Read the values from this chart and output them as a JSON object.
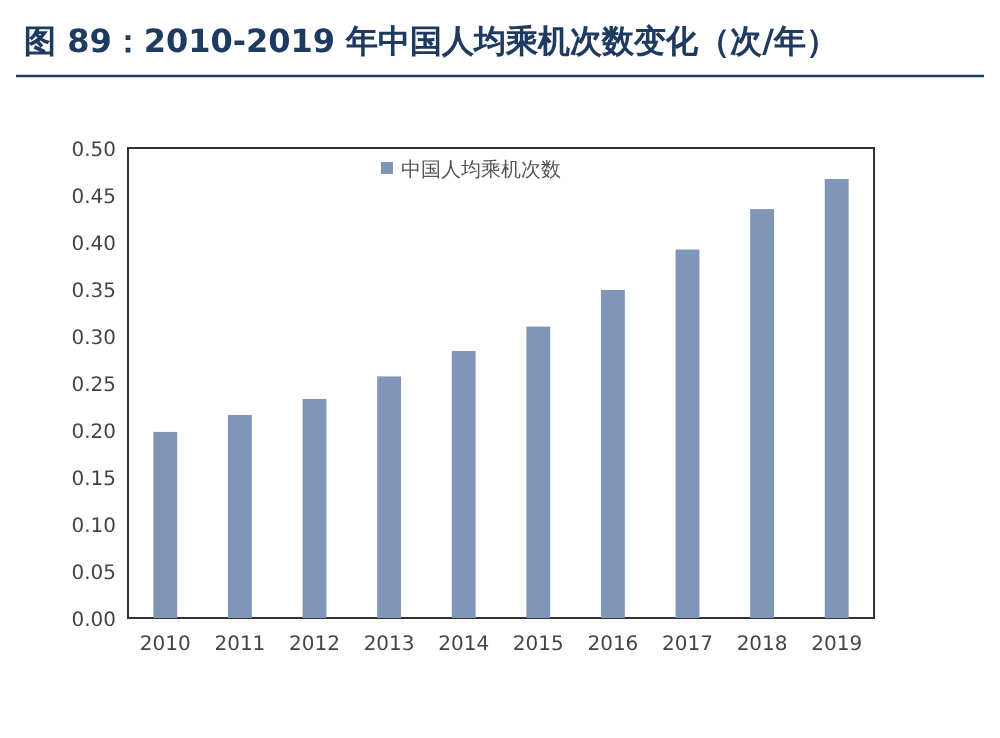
{
  "chart_data": {
    "type": "bar",
    "title": "图 89：2010-2019 年中国人均乘机次数变化（次/年）",
    "categories": [
      "2010",
      "2011",
      "2012",
      "2013",
      "2014",
      "2015",
      "2016",
      "2017",
      "2018",
      "2019"
    ],
    "series": [
      {
        "name": "中国人均乘机次数",
        "color": "#7f96b8",
        "values": [
          0.198,
          0.216,
          0.233,
          0.257,
          0.284,
          0.31,
          0.349,
          0.392,
          0.435,
          0.467
        ]
      }
    ],
    "ylim": [
      0,
      0.5
    ],
    "yticks": [
      {
        "value": 0,
        "label": "0.00"
      },
      {
        "value": 0.05,
        "label": "0.05"
      },
      {
        "value": 0.1,
        "label": "0.10"
      },
      {
        "value": 0.15,
        "label": "0.15"
      },
      {
        "value": 0.2,
        "label": "0.20"
      },
      {
        "value": 0.25,
        "label": "0.25"
      },
      {
        "value": 0.3,
        "label": "0.30"
      },
      {
        "value": 0.35,
        "label": "0.35"
      },
      {
        "value": 0.4,
        "label": "0.40"
      },
      {
        "value": 0.45,
        "label": "0.45"
      },
      {
        "value": 0.5,
        "label": "0.50"
      }
    ],
    "legend": "top",
    "grid": false
  }
}
